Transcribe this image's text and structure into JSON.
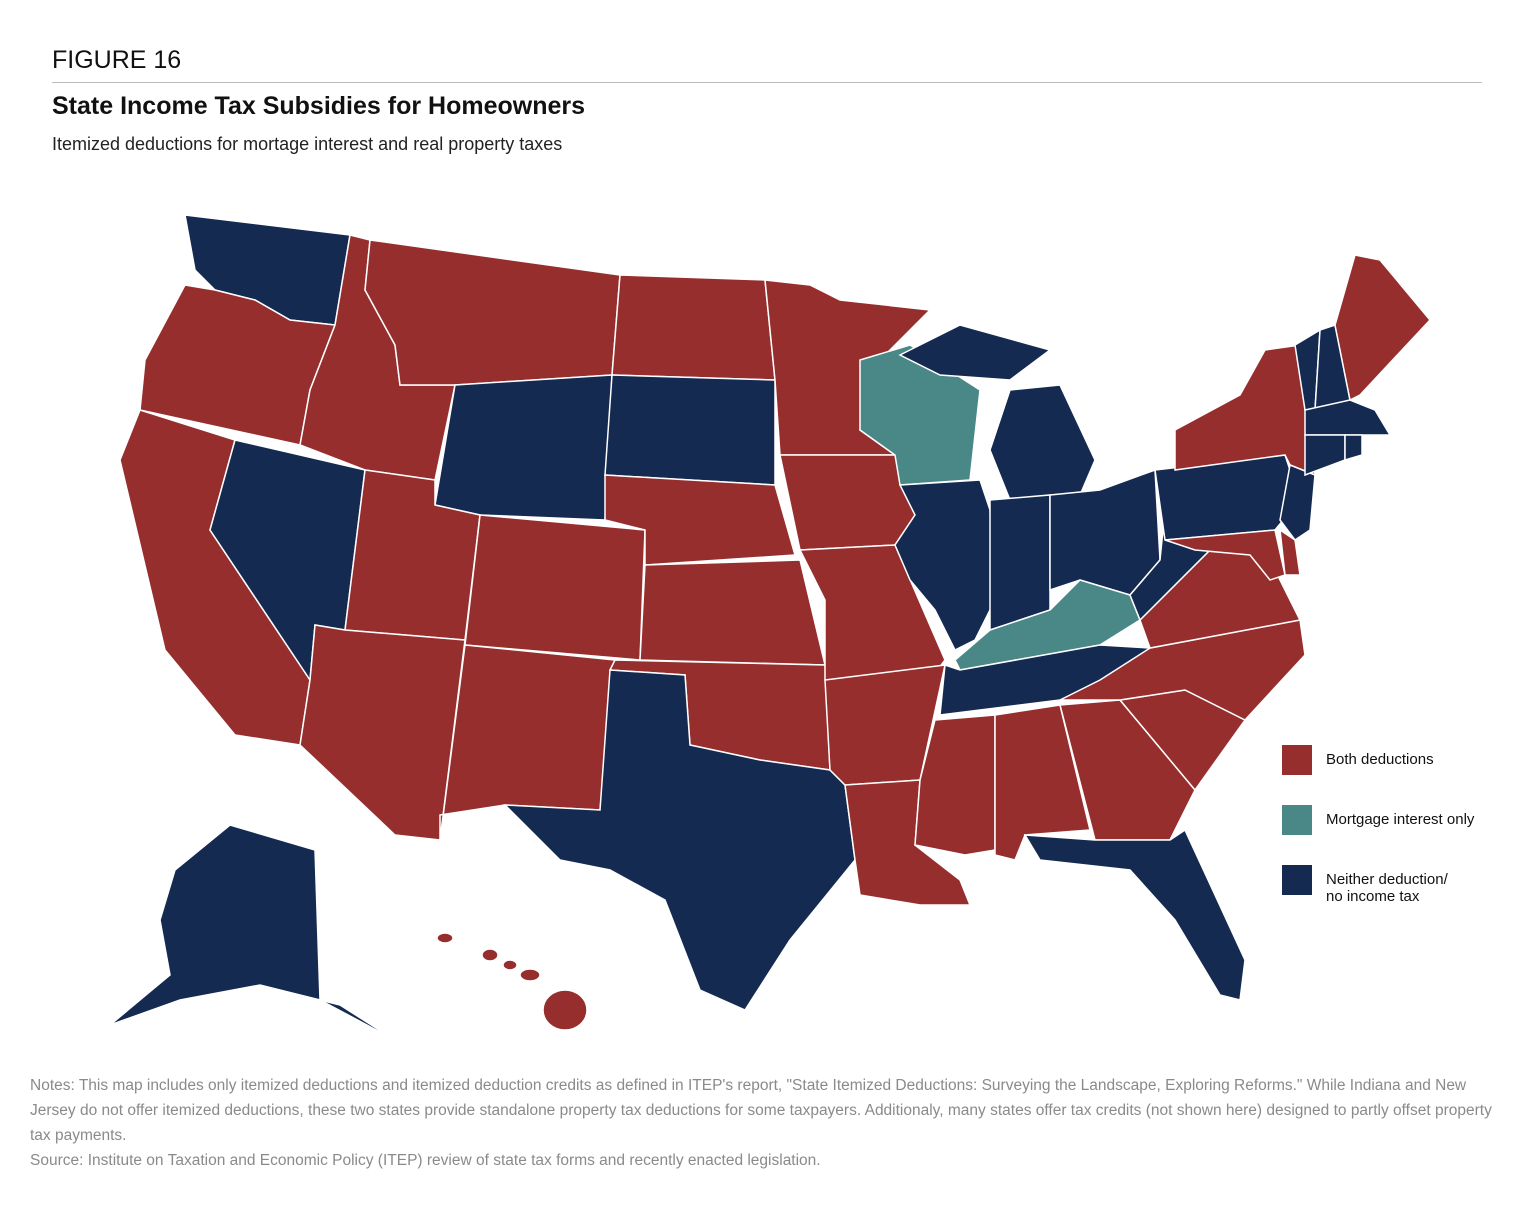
{
  "header": {
    "figure": "FIGURE 16",
    "title": "State Income Tax Subsidies for Homeowners",
    "subtitle": "Itemized deductions for mortage interest and real property taxes"
  },
  "legend": {
    "items": [
      {
        "label": "Both deductions",
        "color": "#972e2e"
      },
      {
        "label": "Mortgage interest only",
        "color": "#4a8888"
      },
      {
        "label": "Neither deduction/\nno income tax",
        "color": "#142a50"
      }
    ]
  },
  "footer": {
    "notes": "Notes: This map includes only itemized deductions and itemized deduction credits as defined in ITEP's report, \"State Itemized Deductions: Surveying the Landscape, Exploring Reforms.\" While Indiana and New Jersey do not offer itemized deductions, these two states provide standalone property tax deductions for some taxpayers. Additionaly, many states offer tax credits (not shown here) designed to partly offset property tax payments.",
    "source": "Source: Institute on Taxation and Economic Policy (ITEP) review of state tax forms and recently enacted legislation."
  }
}
